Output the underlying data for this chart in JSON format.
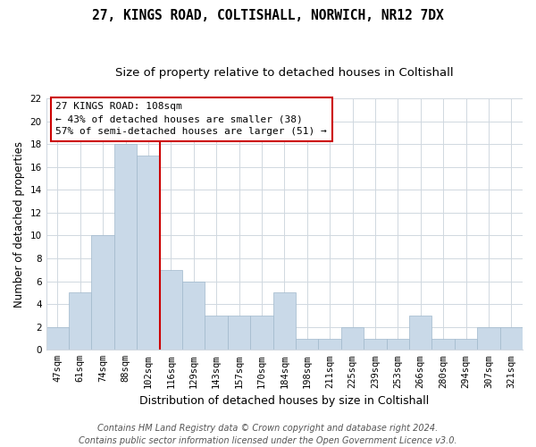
{
  "title": "27, KINGS ROAD, COLTISHALL, NORWICH, NR12 7DX",
  "subtitle": "Size of property relative to detached houses in Coltishall",
  "xlabel": "Distribution of detached houses by size in Coltishall",
  "ylabel": "Number of detached properties",
  "categories": [
    "47sqm",
    "61sqm",
    "74sqm",
    "88sqm",
    "102sqm",
    "116sqm",
    "129sqm",
    "143sqm",
    "157sqm",
    "170sqm",
    "184sqm",
    "198sqm",
    "211sqm",
    "225sqm",
    "239sqm",
    "253sqm",
    "266sqm",
    "280sqm",
    "294sqm",
    "307sqm",
    "321sqm"
  ],
  "values": [
    2,
    5,
    10,
    18,
    17,
    7,
    6,
    3,
    3,
    3,
    5,
    1,
    1,
    2,
    1,
    1,
    3,
    1,
    1,
    2,
    2
  ],
  "bar_color": "#c9d9e8",
  "bar_edgecolor": "#a0b8cc",
  "vline_x": 4.5,
  "vline_color": "#cc0000",
  "annotation_text": "27 KINGS ROAD: 108sqm\n← 43% of detached houses are smaller (38)\n57% of semi-detached houses are larger (51) →",
  "annotation_box_color": "white",
  "annotation_box_edgecolor": "#cc0000",
  "ylim": [
    0,
    22
  ],
  "yticks": [
    0,
    2,
    4,
    6,
    8,
    10,
    12,
    14,
    16,
    18,
    20,
    22
  ],
  "footnote": "Contains HM Land Registry data © Crown copyright and database right 2024.\nContains public sector information licensed under the Open Government Licence v3.0.",
  "background_color": "#ffffff",
  "grid_color": "#d0d8e0",
  "title_fontsize": 10.5,
  "subtitle_fontsize": 9.5,
  "xlabel_fontsize": 9,
  "ylabel_fontsize": 8.5,
  "tick_fontsize": 7.5,
  "annotation_fontsize": 8,
  "footnote_fontsize": 7
}
